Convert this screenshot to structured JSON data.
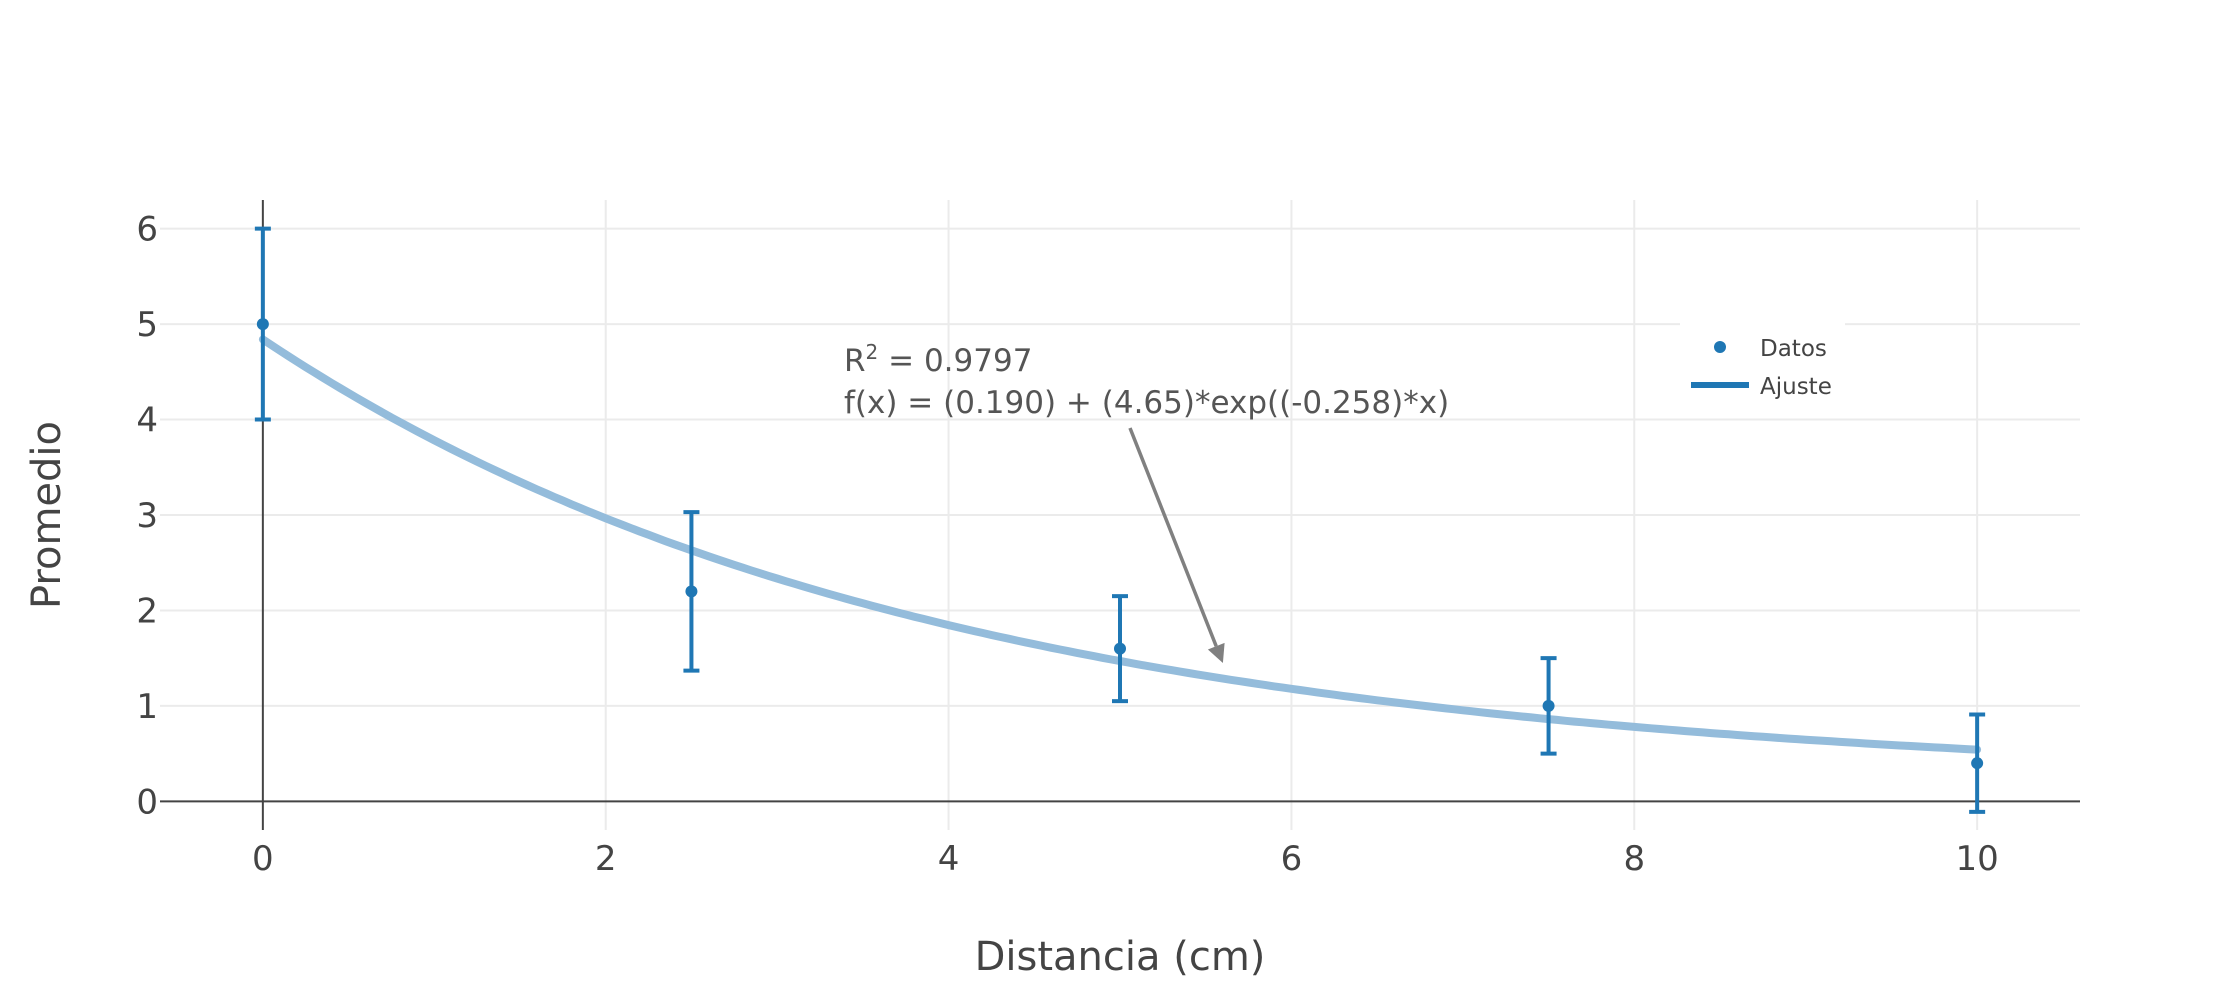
{
  "chart_data": {
    "type": "scatter",
    "title": "",
    "xlabel": "Distancia (cm)",
    "ylabel": "Promedio",
    "xlim": [
      -0.6,
      10.6
    ],
    "ylim": [
      -0.3,
      6.3
    ],
    "x_ticks": [
      0,
      2,
      4,
      6,
      8,
      10
    ],
    "y_ticks": [
      0,
      1,
      2,
      3,
      4,
      5,
      6
    ],
    "grid": true,
    "legend_position": "top-right",
    "series": [
      {
        "name": "Datos",
        "type": "scatter",
        "color": "#1f77b4",
        "x": [
          0,
          2.5,
          5,
          7.5,
          10
        ],
        "y": [
          5.0,
          2.2,
          1.6,
          1.0,
          0.4
        ],
        "error_plus": [
          1.0,
          0.83,
          0.55,
          0.5,
          0.51
        ],
        "error_minus": [
          1.0,
          0.83,
          0.55,
          0.5,
          0.51
        ]
      },
      {
        "name": "Ajuste",
        "type": "line",
        "color": "#94bcdb",
        "legend_color": "#1f77b4",
        "model": {
          "c": 0.19,
          "a": 4.65,
          "b": -0.258
        },
        "x_range": [
          0,
          10
        ]
      }
    ],
    "annotation": {
      "r2_prefix": "R",
      "r2_sup": "2",
      "r2_value": " = 0.9797",
      "equation": "f(x) = (0.190) + (4.65)*exp((-0.258)*x)",
      "arrow_target": {
        "x": 5.6,
        "y": 1.45
      }
    }
  }
}
